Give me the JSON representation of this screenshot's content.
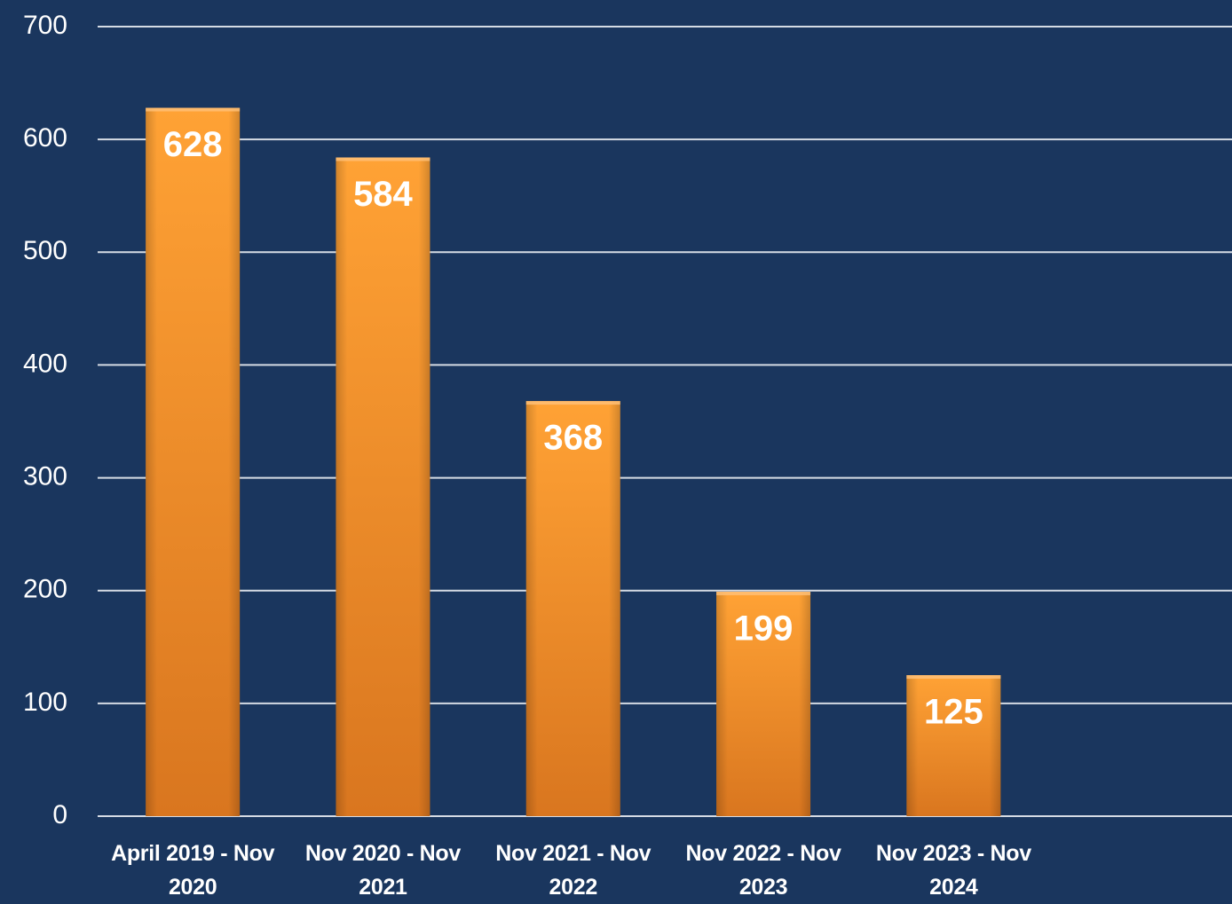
{
  "chart_data": {
    "type": "bar",
    "categories": [
      "April 2019 - Nov 2020",
      "Nov 2020 - Nov 2021",
      "Nov 2021 - Nov 2022",
      "Nov 2022 - Nov 2023",
      "Nov 2023 - Nov 2024"
    ],
    "values": [
      628,
      584,
      368,
      199,
      125
    ],
    "color": "#f7962a",
    "ylim": [
      0,
      700
    ],
    "yticks": [
      0,
      100,
      200,
      300,
      400,
      500,
      600,
      700
    ],
    "grid": true
  }
}
